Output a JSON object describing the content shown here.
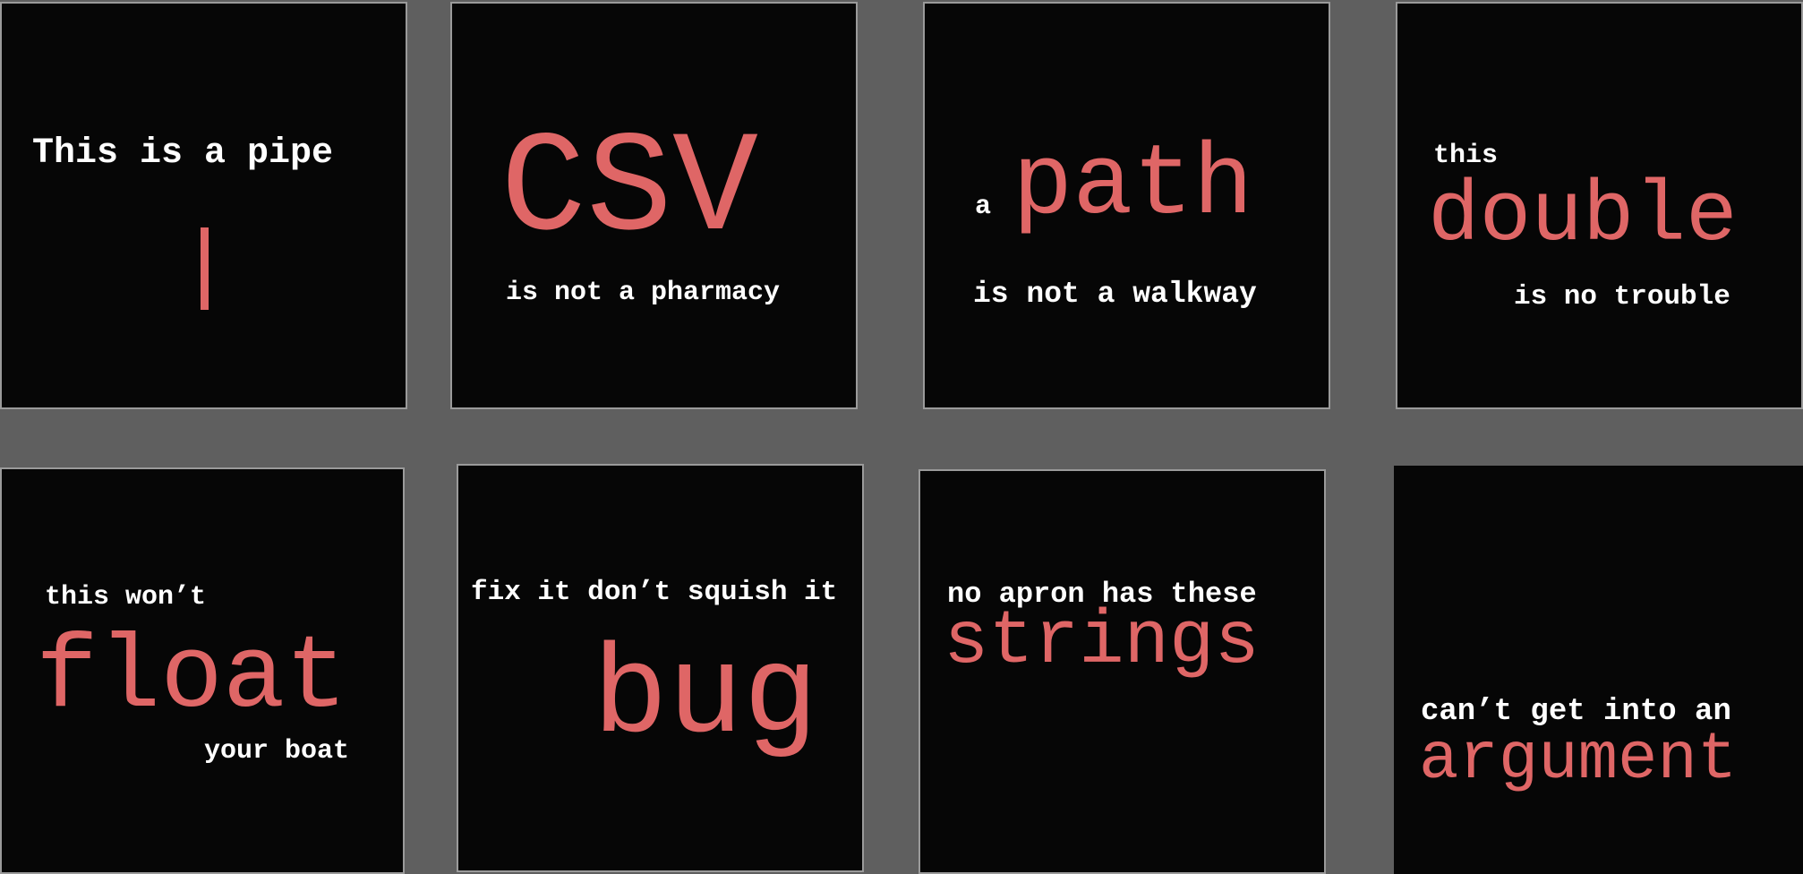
{
  "cards": [
    {
      "line1": "This is a pipe",
      "big": "|"
    },
    {
      "big": "CSV",
      "line2": "is not a pharmacy"
    },
    {
      "small": "a",
      "big": "path",
      "line2": "is not a walkway"
    },
    {
      "line1": "this",
      "big": "double",
      "line2": "is no trouble"
    },
    {
      "line1": "this won’t",
      "big": "float",
      "line2": "your boat"
    },
    {
      "line1": "fix it don’t squish it",
      "big": "bug"
    },
    {
      "line1": "no apron has these",
      "big": "strings"
    },
    {
      "line1": "can’t get into an",
      "big": "argument"
    }
  ],
  "colors": {
    "background": "#5f5f5f",
    "card": "#060606",
    "text": "#ffffff",
    "accent": "#df6666"
  }
}
